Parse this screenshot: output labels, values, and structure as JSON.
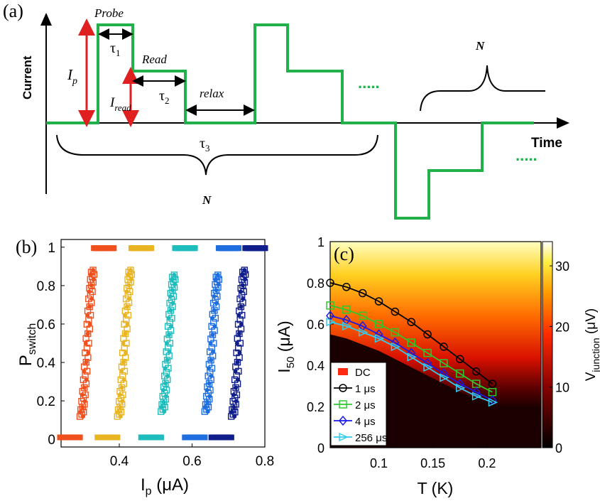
{
  "panel_a": {
    "label": "(a)",
    "ylabel": "Current",
    "xlabel": "Time",
    "annotations": {
      "probe": "Probe",
      "read": "Read",
      "relax": "relax",
      "tau1": "τ",
      "tau1_sub": "1",
      "tau2": "τ",
      "tau2_sub": "2",
      "tau3": "τ",
      "tau3_sub": "3",
      "ip": "I",
      "ip_sub": "p",
      "iread": "I",
      "iread_sub": "read",
      "n_main": "N",
      "n_right": "N",
      "dots": "....."
    },
    "colors": {
      "pulse": "#22b04b",
      "amplitude_arrow": "#e02020",
      "duration_arrow": "#000000"
    }
  },
  "chart_data": [
    {
      "type": "scatter",
      "panel": "(b)",
      "xlabel": "I",
      "xlabel_sub": "p",
      "xlabel_unit": " (μA)",
      "ylabel": "P",
      "ylabel_sub": "switch",
      "xlim": [
        0.24,
        0.8
      ],
      "ylim": [
        -0.04,
        1.04
      ],
      "xticks": [
        "0.4",
        "0.6",
        "0.8"
      ],
      "xtick_values": [
        0.4,
        0.6,
        0.8
      ],
      "yticks": [
        "0",
        "0.2",
        "0.4",
        "0.6",
        "0.8",
        "1"
      ],
      "ytick_values": [
        0,
        0.2,
        0.4,
        0.6,
        0.8,
        1
      ],
      "series": [
        {
          "color": "#f0501e",
          "center": 0.312,
          "width": 0.008
        },
        {
          "color": "#e8b422",
          "center": 0.415,
          "width": 0.008
        },
        {
          "color": "#1ebcbc",
          "center": 0.535,
          "width": 0.009
        },
        {
          "color": "#1e6ee0",
          "center": 0.655,
          "width": 0.009
        },
        {
          "color": "#101e8c",
          "center": 0.728,
          "width": 0.008
        }
      ]
    },
    {
      "type": "line",
      "panel": "(c)",
      "xlabel": "T (K)",
      "ylabel": "I",
      "ylabel_sub": "50",
      "ylabel_unit": " (μA)",
      "xlim": [
        0.055,
        0.25
      ],
      "ylim": [
        0,
        1
      ],
      "xticks": [
        "0.1",
        "0.15",
        "0.2"
      ],
      "xtick_values": [
        0.1,
        0.15,
        0.2
      ],
      "yticks": [
        "0",
        "0.2",
        "0.4",
        "0.6",
        "0.8",
        "1"
      ],
      "ytick_values": [
        0,
        0.2,
        0.4,
        0.6,
        0.8,
        1
      ],
      "colorbar": {
        "label": "V",
        "label_sub": "junction",
        "label_unit": " (μV)",
        "ticks": [
          "0",
          "10",
          "20",
          "30"
        ],
        "tick_values": [
          0,
          10,
          20,
          30
        ],
        "max": 34
      },
      "legend_position": "bottom-left",
      "x": [
        0.055,
        0.07,
        0.085,
        0.1,
        0.115,
        0.13,
        0.145,
        0.16,
        0.175,
        0.19,
        0.205
      ],
      "series": [
        {
          "name": "DC",
          "color": "#ff2a12",
          "marker": "square-filled",
          "values": [
            0.55,
            0.53,
            0.5,
            0.47,
            0.43,
            0.39,
            0.35,
            0.31,
            0.27,
            0.24,
            0.21
          ]
        },
        {
          "name": "1 μs",
          "color": "#000000",
          "marker": "circle",
          "values": [
            0.8,
            0.78,
            0.75,
            0.71,
            0.66,
            0.61,
            0.55,
            0.49,
            0.43,
            0.37,
            0.31
          ]
        },
        {
          "name": "2 μs",
          "color": "#2ec82e",
          "marker": "square",
          "values": [
            0.69,
            0.67,
            0.64,
            0.6,
            0.56,
            0.51,
            0.46,
            0.41,
            0.36,
            0.31,
            0.27
          ]
        },
        {
          "name": "4 μs",
          "color": "#1a1ae6",
          "marker": "diamond",
          "values": [
            0.64,
            0.62,
            0.59,
            0.55,
            0.51,
            0.46,
            0.41,
            0.36,
            0.31,
            0.27,
            0.23
          ]
        },
        {
          "name": "256 μs",
          "color": "#33ccee",
          "marker": "triangle-right",
          "values": [
            0.61,
            0.59,
            0.56,
            0.53,
            0.49,
            0.44,
            0.39,
            0.34,
            0.29,
            0.25,
            0.22
          ]
        }
      ]
    }
  ]
}
